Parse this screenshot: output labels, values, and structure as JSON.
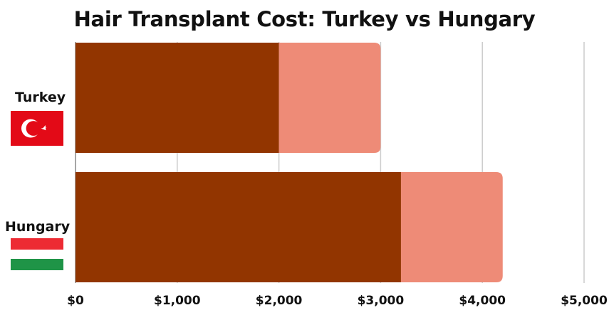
{
  "colors": {
    "base": "#923500",
    "range": "#ee8b77",
    "grid": "#cccccc",
    "turkey_red": "#e30a17",
    "hungary_red": "#ed2b33",
    "hungary_green": "#1f9447"
  },
  "chart_data": {
    "type": "bar",
    "orientation": "horizontal",
    "stacked": true,
    "title": "Hair Transplant Cost: Turkey vs Hungary",
    "categories": [
      "Turkey",
      "Hungary"
    ],
    "series": [
      {
        "values": [
          2000,
          3200
        ]
      },
      {
        "values": [
          1000,
          1000
        ]
      }
    ],
    "xlim": [
      0,
      5000
    ],
    "x_ticks": [
      "$0",
      "$1,000",
      "$2,000",
      "$3,000",
      "$4,000",
      "$5,000"
    ],
    "grid": "vertical",
    "legend": "none"
  },
  "flags": {
    "turkey": "turkey-flag-icon",
    "hungary": "hungary-flag-icon"
  }
}
